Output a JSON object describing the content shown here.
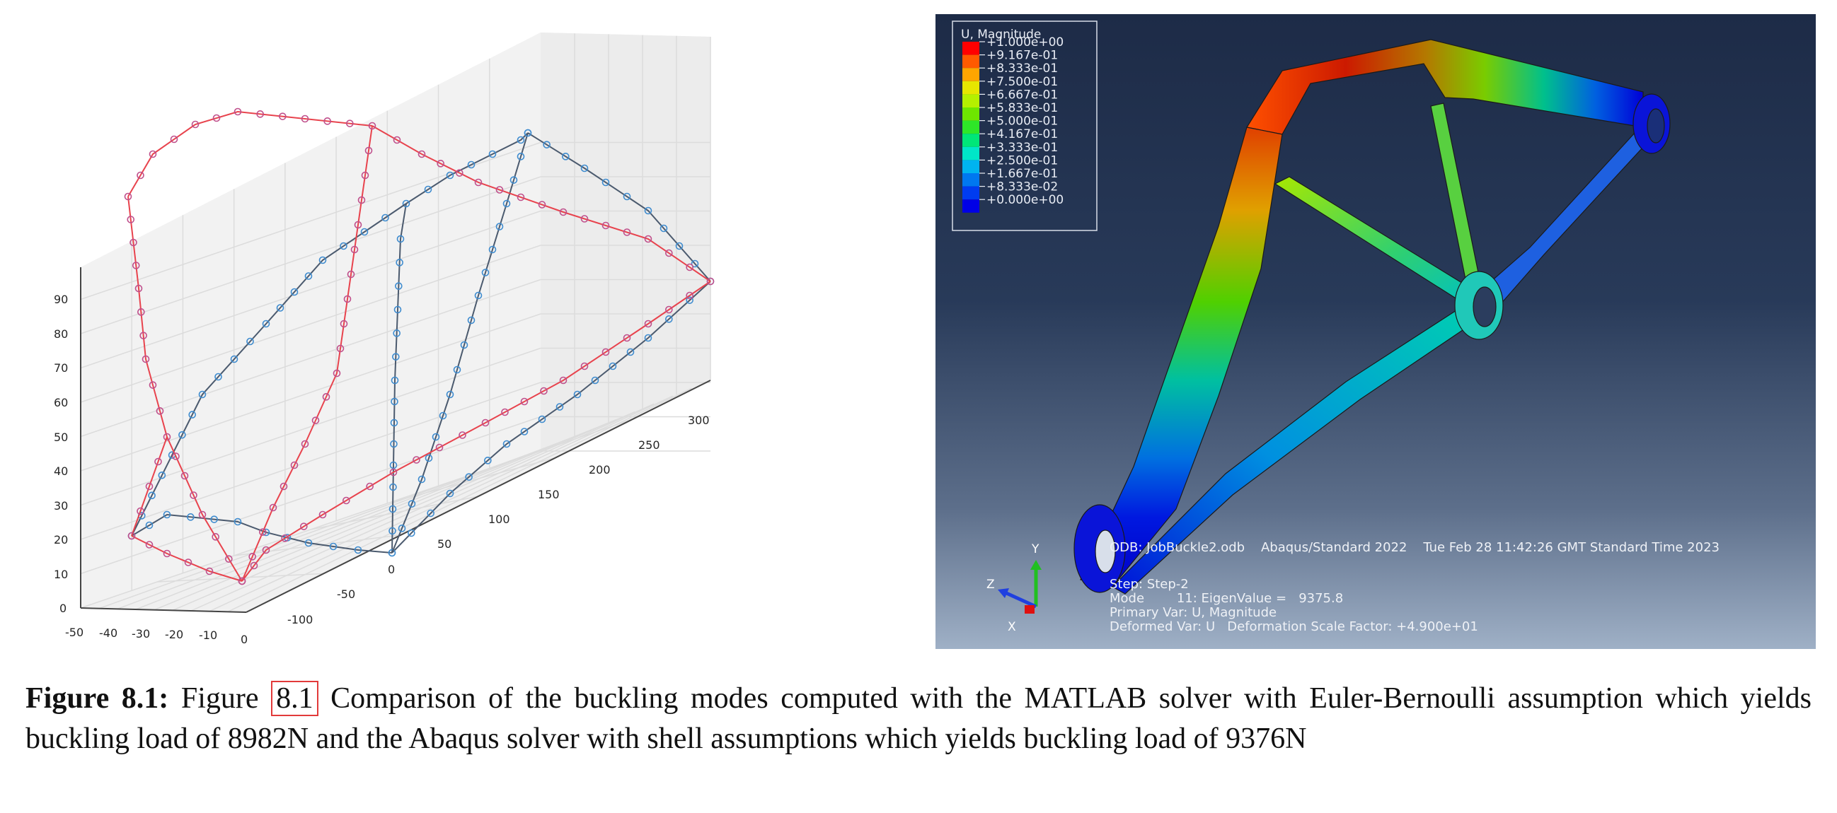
{
  "left_plot": {
    "z_ticks": [
      "0",
      "10",
      "20",
      "30",
      "40",
      "50",
      "60",
      "70",
      "80",
      "90"
    ],
    "x_ticks": [
      "-50",
      "-40",
      "-30",
      "-20",
      "-10",
      "0"
    ],
    "y_ticks": [
      "-100",
      "-50",
      "0",
      "50",
      "100",
      "150",
      "200",
      "250",
      "300"
    ],
    "series_colors": [
      "#e8434d",
      "#4b5a6e"
    ],
    "marker_colors": [
      "#c0508c",
      "#3f8ccf"
    ]
  },
  "right_plot": {
    "legend_title": "U, Magnitude",
    "legend_values": [
      "+1.000e+00",
      "+9.167e-01",
      "+8.333e-01",
      "+7.500e-01",
      "+6.667e-01",
      "+5.833e-01",
      "+5.000e-01",
      "+4.167e-01",
      "+3.333e-01",
      "+2.500e-01",
      "+1.667e-01",
      "+8.333e-02",
      "+0.000e+00"
    ],
    "legend_colors": [
      "#ff0000",
      "#ff5a00",
      "#ffa500",
      "#e6e600",
      "#b4f000",
      "#6ee600",
      "#2ee628",
      "#00e678",
      "#00e6c8",
      "#00b4f0",
      "#0078f0",
      "#003cf0",
      "#0000e6"
    ],
    "info_line1": "ODB: JobBuckle2.odb    Abaqus/Standard 2022    Tue Feb 28 11:42:26 GMT Standard Time 2023",
    "info_step": "Step: Step-2",
    "info_mode": "Mode        11: EigenValue =   9375.8",
    "info_primary": "Primary Var: U, Magnitude",
    "info_deformed": "Deformed Var: U   Deformation Scale Factor: +4.900e+01",
    "axis_y": "Y",
    "axis_z": "Z",
    "axis_x": "X"
  },
  "caption": {
    "label": "Figure 8.1:",
    "prefix": " Figure ",
    "ref": "8.1",
    "text": " Comparison of the buckling modes computed with the MATLAB solver with Euler-Bernoulli assumption which yields buckling load of 8982N and the Abaqus solver with shell assumptions which yields buckling load of 9376N"
  }
}
